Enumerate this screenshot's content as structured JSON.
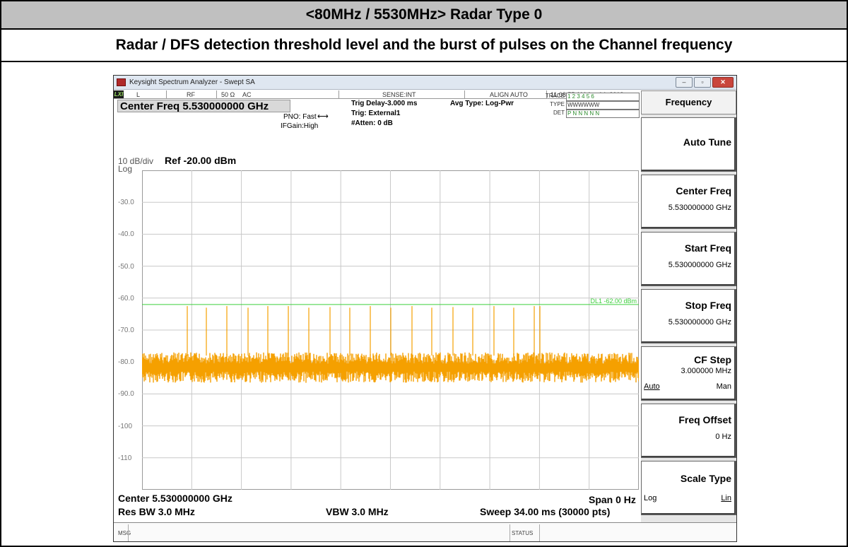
{
  "header": {
    "title": "<80MHz / 5530MHz> Radar Type 0",
    "subtitle": "Radar / DFS detection threshold level and the burst of pulses on the Channel frequency"
  },
  "window": {
    "title": "Keysight Spectrum Analyzer - Swept SA",
    "buttons": [
      "–",
      "▫",
      "✕"
    ]
  },
  "statusbar": {
    "lxi": "LXI",
    "l": "L",
    "rf": "RF",
    "ohm": "50 Ω",
    "ac": "AC",
    "sense": "SENSE:INT",
    "align": "ALIGN AUTO",
    "datetime": "11:08:55 AM Apr 14, 2018"
  },
  "measurement": {
    "center_freq_label": "Center Freq 5.530000000 GHz",
    "pno": "PNO: Fast",
    "ifgain": "IFGain:High",
    "trig_delay": "Trig Delay-3.000 ms",
    "trig": "Trig: External1",
    "atten": "#Atten: 0 dB",
    "avg_type": "Avg Type: Log-Pwr",
    "trace_label": "TRACE",
    "trace_vals": "1 2 3 4 5 6",
    "type_label": "TYPE",
    "type_vals": "WWWWWW",
    "det_label": "DET",
    "det_vals": "P N N N N N"
  },
  "plot": {
    "scale": "10 dB/div",
    "ref": "Ref -20.00 dBm",
    "log": "Log",
    "y_tick_labels": [
      "-30.0",
      "-40.0",
      "-50.0",
      "-60.0",
      "-70.0",
      "-80.0",
      "-90.0",
      "-100",
      "-110"
    ],
    "display_line_label": "DL1 -62.00 dBm",
    "colors": {
      "trace": "#f5a000",
      "display_line": "#3ccf3c",
      "grid": "#c8c8c8"
    }
  },
  "footer": {
    "center": "Center 5.530000000 GHz",
    "span": "Span 0 Hz",
    "res_bw": "Res BW 3.0 MHz",
    "vbw": "VBW 3.0 MHz",
    "sweep": "Sweep  34.00 ms (30000 pts)"
  },
  "msgbar": {
    "msg": "MSG",
    "status": "STATUS"
  },
  "softkeys": {
    "menu_title": "Frequency",
    "auto_tune": "Auto Tune",
    "center_freq": {
      "label": "Center Freq",
      "value": "5.530000000 GHz"
    },
    "start_freq": {
      "label": "Start Freq",
      "value": "5.530000000 GHz"
    },
    "stop_freq": {
      "label": "Stop Freq",
      "value": "5.530000000 GHz"
    },
    "cf_step": {
      "label": "CF Step",
      "value": "3.000000 MHz",
      "left": "Auto",
      "right": "Man"
    },
    "freq_offset": {
      "label": "Freq Offset",
      "value": "0 Hz"
    },
    "scale_type": {
      "label": "Scale Type",
      "left": "Log",
      "right": "Lin"
    }
  }
}
